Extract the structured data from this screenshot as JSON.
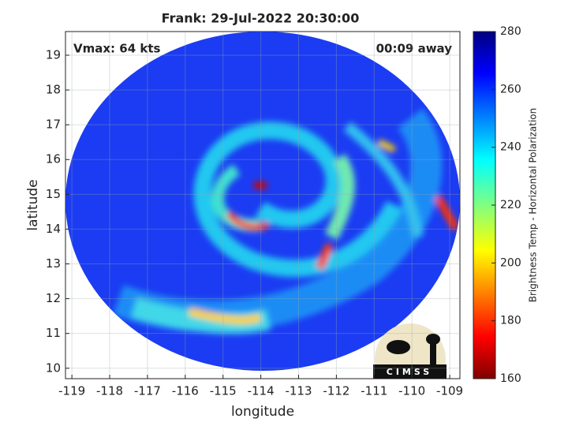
{
  "chart_data": {
    "type": "image",
    "title": "Frank: 29-Jul-2022 20:30:00",
    "xlabel": "longitude",
    "ylabel": "latitude",
    "annotations": [
      "Vmax: 64 kts",
      "00:09 away"
    ],
    "xlim": [
      -119.17,
      -108.73
    ],
    "ylim": [
      9.7,
      19.68
    ],
    "xticks": [
      -119,
      -118,
      -117,
      -116,
      -115,
      -114,
      -113,
      -112,
      -111,
      -110,
      -109
    ],
    "yticks": [
      10,
      11,
      12,
      13,
      14,
      15,
      16,
      17,
      18,
      19
    ],
    "grid": true,
    "colorbar": {
      "label": "Brightness Temp - Horizontal Polarization",
      "lim": [
        160,
        280
      ],
      "ticks": [
        160,
        180,
        200,
        220,
        240,
        260,
        280
      ]
    },
    "logo": "CIMSS"
  }
}
